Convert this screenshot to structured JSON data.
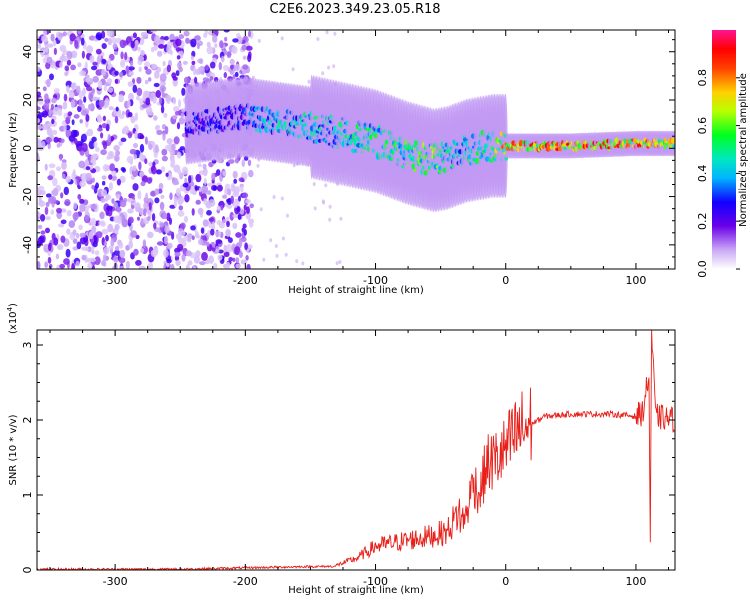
{
  "chart_data": [
    {
      "type": "heatmap",
      "title": "C2E6.2023.349.23.05.R18",
      "xlabel": "Height of straight line (km)",
      "ylabel": "Frequency (Hz)",
      "xlim": [
        -360,
        130
      ],
      "ylim": [
        -50,
        49
      ],
      "xticks": [
        -300,
        -200,
        -100,
        0,
        100
      ],
      "yticks": [
        -40,
        -20,
        0,
        20,
        40
      ],
      "colorbar": {
        "label": "Normalized spectral amplitude",
        "range": [
          0.0,
          1.0
        ],
        "ticks": [
          "0.0",
          "0.2",
          "0.4",
          "0.6",
          "0.8"
        ]
      },
      "noise_region": {
        "x_from": -360,
        "x_to": -195,
        "description_level": "low"
      },
      "signal_ridge": {
        "x": [
          -245,
          -200,
          -190,
          -150,
          -100,
          -75,
          -55,
          -45,
          -30,
          -10,
          0,
          50,
          100,
          130
        ],
        "freq_hz": [
          10,
          13,
          12,
          9,
          3,
          -2,
          -5,
          -4,
          -1,
          1,
          1,
          1,
          2,
          2
        ],
        "peak_amplitude": [
          0.3,
          0.3,
          0.45,
          0.5,
          0.55,
          0.6,
          0.65,
          0.55,
          0.5,
          0.6,
          0.85,
          0.9,
          0.9,
          0.8
        ]
      }
    },
    {
      "type": "line",
      "xlabel": "Height of straight line (km)",
      "ylabel": "SNR (10 * v/v)",
      "exponent_label": "(x10",
      "exponent_power": "4",
      "exponent_close": ")",
      "xlim": [
        -360,
        130
      ],
      "ylim": [
        0,
        3.2
      ],
      "xticks": [
        -300,
        -200,
        -100,
        0,
        100
      ],
      "yticks": [
        0,
        1,
        2,
        3
      ],
      "series": [
        {
          "color": "#e8201a",
          "x": [
            -360,
            -250,
            -170,
            -130,
            -115,
            -100,
            -80,
            -60,
            -45,
            -30,
            -25,
            -20,
            -15,
            -5,
            0,
            10,
            20,
            30,
            50,
            80,
            100,
            105,
            110,
            111,
            112,
            115,
            130
          ],
          "y": [
            0.01,
            0.01,
            0.04,
            0.05,
            0.12,
            0.25,
            0.3,
            0.35,
            0.4,
            0.75,
            1.2,
            1.0,
            1.4,
            1.5,
            1.6,
            1.85,
            1.95,
            2.05,
            2.08,
            2.08,
            2.05,
            2.1,
            2.6,
            0.35,
            3.2,
            2.05,
            2.0
          ]
        }
      ]
    }
  ]
}
